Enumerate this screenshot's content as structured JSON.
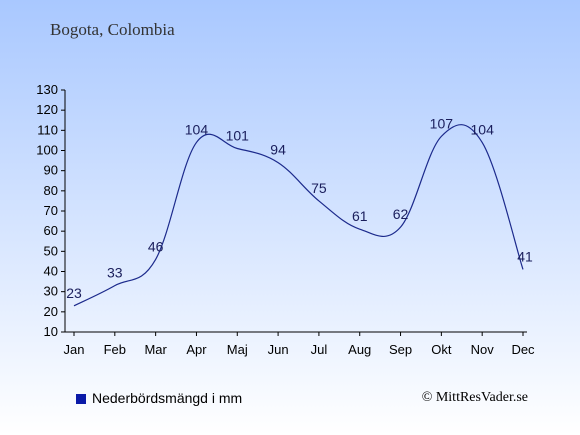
{
  "chart_data": {
    "type": "line",
    "title": "Bogota, Colombia",
    "categories": [
      "Jan",
      "Feb",
      "Mar",
      "Apr",
      "Maj",
      "Jun",
      "Jul",
      "Aug",
      "Sep",
      "Okt",
      "Nov",
      "Dec"
    ],
    "series": [
      {
        "name": "Nederbördsmängd i mm",
        "values": [
          23,
          33,
          46,
          104,
          101,
          94,
          75,
          61,
          62,
          107,
          104,
          41
        ]
      }
    ],
    "ylim": [
      10,
      130
    ],
    "yticks": [
      10,
      20,
      30,
      40,
      50,
      60,
      70,
      80,
      90,
      100,
      110,
      120,
      130
    ],
    "grid": false,
    "legend": "bottom-left",
    "line_color": "#1c2a8c",
    "credit": "© MittResVader.se"
  }
}
